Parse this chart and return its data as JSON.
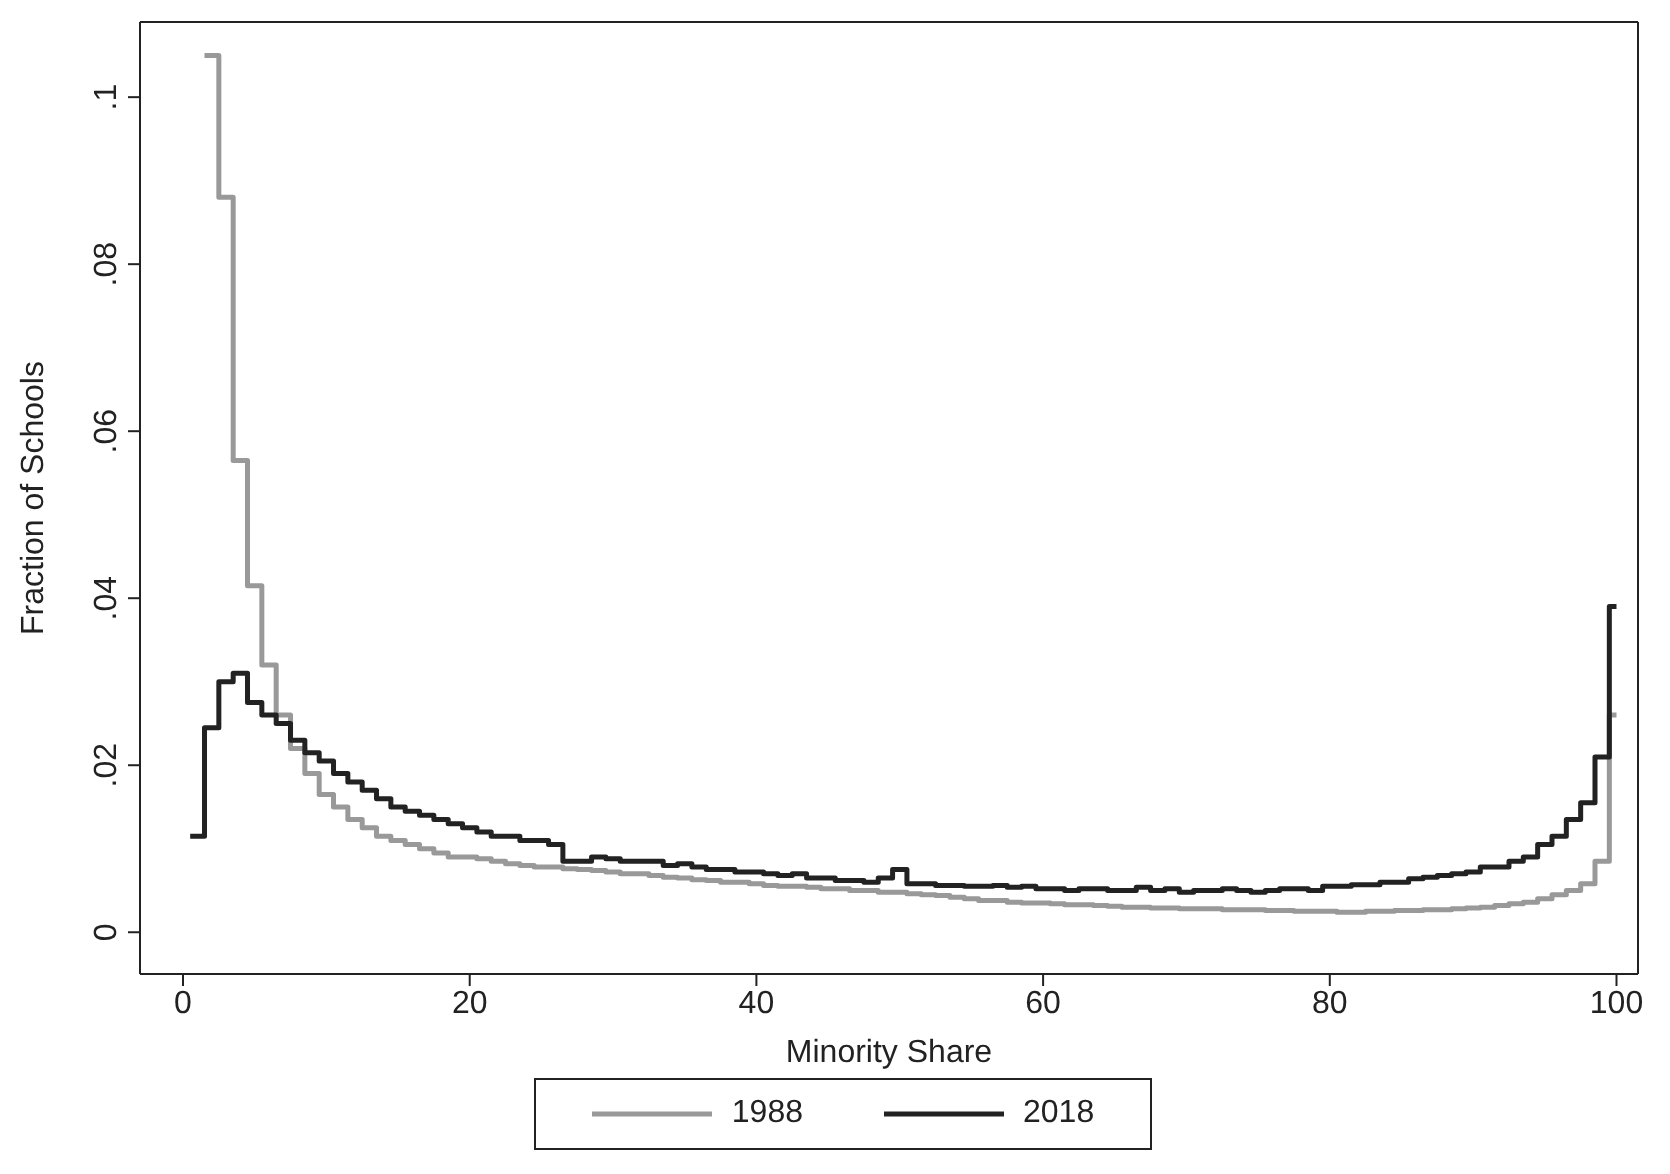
{
  "chart_data": {
    "type": "step",
    "xlabel": "Minority Share",
    "ylabel": "Fraction of Schools",
    "xlim": [
      -3,
      101.5
    ],
    "ylim": [
      -0.005,
      0.109
    ],
    "xticks": [
      0,
      20,
      40,
      60,
      80,
      100
    ],
    "yticks": [
      {
        "value": 0,
        "label": "0"
      },
      {
        "value": 0.02,
        "label": ".02"
      },
      {
        "value": 0.04,
        "label": ".04"
      },
      {
        "value": 0.06,
        "label": ".06"
      },
      {
        "value": 0.08,
        "label": ".08"
      },
      {
        "value": 0.1,
        "label": ".1"
      }
    ],
    "grid": false,
    "legend": "bottom",
    "marker": "none",
    "line_style": "solid",
    "series": [
      {
        "name": "1988",
        "color": "#999999",
        "x": [
          1.5,
          2.5,
          3.5,
          4.5,
          5.5,
          6.5,
          7.5,
          8.5,
          9.5,
          10.5,
          11.5,
          12.5,
          13.5,
          14.5,
          15.5,
          16.5,
          17.5,
          18.5,
          19.5,
          20.5,
          21.5,
          22.5,
          23.5,
          24.5,
          25.5,
          26.5,
          27.5,
          28.5,
          29.5,
          30.5,
          31.5,
          32.5,
          33.5,
          34.5,
          35.5,
          36.5,
          37.5,
          38.5,
          39.5,
          40.5,
          41.5,
          42.5,
          43.5,
          44.5,
          45.5,
          46.5,
          47.5,
          48.5,
          49.5,
          50.5,
          51.5,
          52.5,
          53.5,
          54.5,
          55.5,
          56.5,
          57.5,
          58.5,
          59.5,
          60.5,
          61.5,
          62.5,
          63.5,
          64.5,
          65.5,
          66.5,
          67.5,
          68.5,
          69.5,
          70.5,
          71.5,
          72.5,
          73.5,
          74.5,
          75.5,
          76.5,
          77.5,
          78.5,
          79.5,
          80.5,
          81.5,
          82.5,
          83.5,
          84.5,
          85.5,
          86.5,
          87.5,
          88.5,
          89.5,
          90.5,
          91.5,
          92.5,
          93.5,
          94.5,
          95.5,
          96.5,
          97.5,
          98.5,
          99.5,
          100
        ],
        "values": [
          0.105,
          0.088,
          0.0565,
          0.0415,
          0.032,
          0.026,
          0.022,
          0.019,
          0.0165,
          0.015,
          0.0135,
          0.0125,
          0.0115,
          0.011,
          0.0105,
          0.01,
          0.0095,
          0.009,
          0.009,
          0.0088,
          0.0085,
          0.0082,
          0.008,
          0.0078,
          0.0078,
          0.0076,
          0.0075,
          0.0074,
          0.0072,
          0.007,
          0.007,
          0.0068,
          0.0066,
          0.0065,
          0.0063,
          0.0062,
          0.006,
          0.006,
          0.0058,
          0.0056,
          0.0055,
          0.0055,
          0.0054,
          0.0052,
          0.0052,
          0.005,
          0.005,
          0.0048,
          0.0048,
          0.0046,
          0.0045,
          0.0044,
          0.0042,
          0.004,
          0.0038,
          0.0038,
          0.0036,
          0.0035,
          0.0035,
          0.0034,
          0.0033,
          0.0033,
          0.0032,
          0.0031,
          0.003,
          0.003,
          0.0029,
          0.0029,
          0.0028,
          0.0028,
          0.0028,
          0.0027,
          0.0027,
          0.0027,
          0.0026,
          0.0026,
          0.0025,
          0.0025,
          0.0025,
          0.0024,
          0.0024,
          0.0025,
          0.0025,
          0.0026,
          0.0026,
          0.0027,
          0.0027,
          0.0028,
          0.0029,
          0.003,
          0.0032,
          0.0034,
          0.0036,
          0.004,
          0.0045,
          0.005,
          0.0058,
          0.0085,
          0.026,
          0.026
        ]
      },
      {
        "name": "2018",
        "color": "#222222",
        "x": [
          0.5,
          1.5,
          2.5,
          3.5,
          4.5,
          5.5,
          6.5,
          7.5,
          8.5,
          9.5,
          10.5,
          11.5,
          12.5,
          13.5,
          14.5,
          15.5,
          16.5,
          17.5,
          18.5,
          19.5,
          20.5,
          21.5,
          22.5,
          23.5,
          24.5,
          25.5,
          26.5,
          27.5,
          28.5,
          29.5,
          30.5,
          31.5,
          32.5,
          33.5,
          34.5,
          35.5,
          36.5,
          37.5,
          38.5,
          39.5,
          40.5,
          41.5,
          42.5,
          43.5,
          44.5,
          45.5,
          46.5,
          47.5,
          48.5,
          49.5,
          50.5,
          51.5,
          52.5,
          53.5,
          54.5,
          55.5,
          56.5,
          57.5,
          58.5,
          59.5,
          60.5,
          61.5,
          62.5,
          63.5,
          64.5,
          65.5,
          66.5,
          67.5,
          68.5,
          69.5,
          70.5,
          71.5,
          72.5,
          73.5,
          74.5,
          75.5,
          76.5,
          77.5,
          78.5,
          79.5,
          80.5,
          81.5,
          82.5,
          83.5,
          84.5,
          85.5,
          86.5,
          87.5,
          88.5,
          89.5,
          90.5,
          91.5,
          92.5,
          93.5,
          94.5,
          95.5,
          96.5,
          97.5,
          98.5,
          99.5,
          100
        ],
        "values": [
          0.0115,
          0.0245,
          0.03,
          0.031,
          0.0275,
          0.026,
          0.025,
          0.023,
          0.0215,
          0.0205,
          0.019,
          0.018,
          0.017,
          0.016,
          0.015,
          0.0145,
          0.014,
          0.0135,
          0.013,
          0.0125,
          0.012,
          0.0115,
          0.0115,
          0.011,
          0.011,
          0.0105,
          0.0085,
          0.0085,
          0.009,
          0.0088,
          0.0085,
          0.0085,
          0.0085,
          0.008,
          0.0082,
          0.0078,
          0.0075,
          0.0075,
          0.0072,
          0.0072,
          0.007,
          0.0068,
          0.007,
          0.0065,
          0.0065,
          0.0062,
          0.0062,
          0.006,
          0.0065,
          0.0075,
          0.0058,
          0.0058,
          0.0056,
          0.0056,
          0.0055,
          0.0055,
          0.0056,
          0.0054,
          0.0055,
          0.0052,
          0.0052,
          0.005,
          0.0052,
          0.0052,
          0.005,
          0.005,
          0.0054,
          0.005,
          0.0052,
          0.0048,
          0.005,
          0.005,
          0.0052,
          0.005,
          0.0048,
          0.005,
          0.0052,
          0.0052,
          0.005,
          0.0055,
          0.0055,
          0.0057,
          0.0057,
          0.006,
          0.006,
          0.0064,
          0.0066,
          0.0068,
          0.007,
          0.0072,
          0.0078,
          0.0078,
          0.0085,
          0.009,
          0.0105,
          0.0115,
          0.0135,
          0.0155,
          0.021,
          0.039,
          0.039
        ]
      }
    ]
  }
}
